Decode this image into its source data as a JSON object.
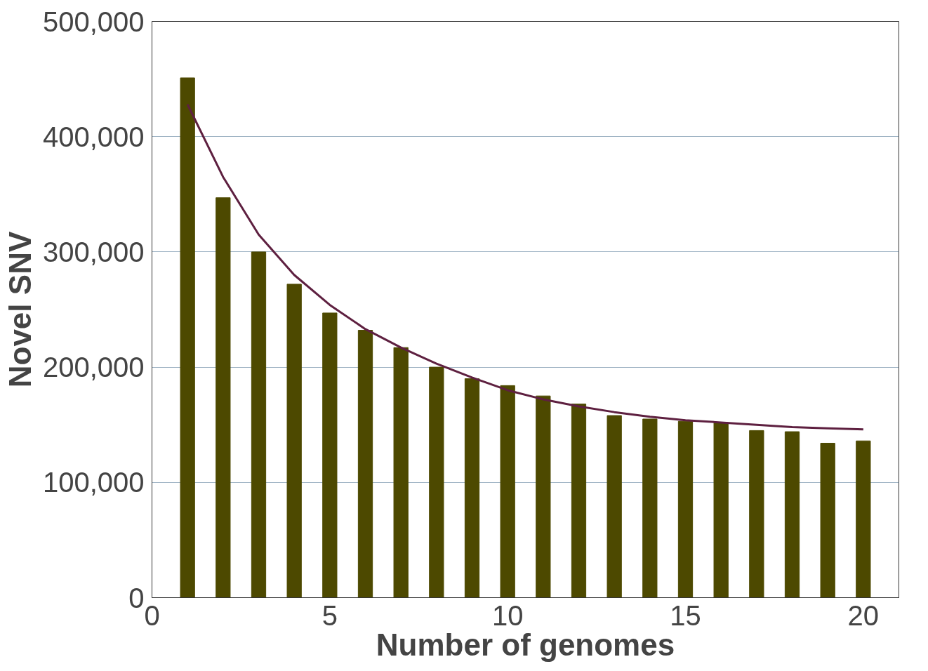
{
  "chart_data": {
    "type": "bar",
    "xlabel": "Number of genomes",
    "ylabel": "Novel SNV",
    "x": [
      1,
      2,
      3,
      4,
      5,
      6,
      7,
      8,
      9,
      10,
      11,
      12,
      13,
      14,
      15,
      16,
      17,
      18,
      19,
      20
    ],
    "series": [
      {
        "color": "#4d4900",
        "values": [
          451000,
          347000,
          300000,
          272000,
          247000,
          232000,
          217000,
          200000,
          190000,
          184000,
          175000,
          168000,
          158000,
          155000,
          153000,
          152000,
          145000,
          144000,
          134000,
          136000
        ]
      },
      {
        "type": "line",
        "color": "#5e2040",
        "x": [
          1,
          2,
          3,
          4,
          5,
          6,
          7,
          8,
          9,
          10,
          11,
          12,
          13,
          14,
          15,
          16,
          17,
          18,
          19,
          20
        ],
        "values": [
          428000,
          365000,
          315000,
          280000,
          254000,
          233000,
          217000,
          203000,
          191000,
          180000,
          172000,
          166000,
          161000,
          157000,
          154000,
          152000,
          150000,
          148000,
          147000,
          146000
        ]
      }
    ],
    "xlim": [
      0,
      21
    ],
    "xticks": [
      0,
      5,
      10,
      15,
      20
    ],
    "ylim": [
      0,
      500000
    ],
    "yticks": [
      {
        "value": 0,
        "label": "0"
      },
      {
        "value": 100000,
        "label": "100,000"
      },
      {
        "value": 200000,
        "label": "200,000"
      },
      {
        "value": 300000,
        "label": "300,000"
      },
      {
        "value": 400000,
        "label": "400,000"
      },
      {
        "value": 500000,
        "label": "500,000"
      }
    ],
    "grid": "y",
    "marker": "none",
    "line_style": "solid"
  }
}
